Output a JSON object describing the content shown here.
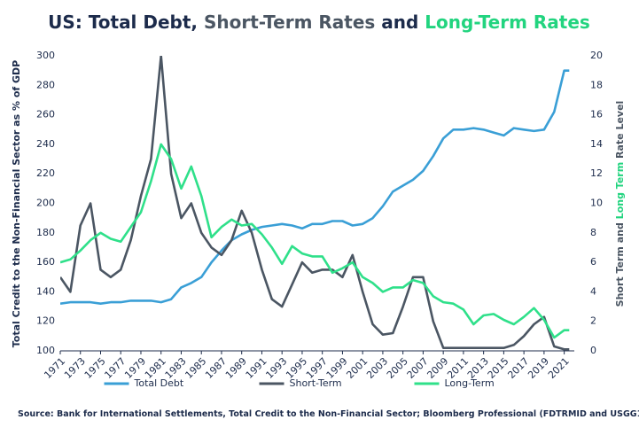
{
  "chart_data": {
    "type": "line",
    "title_parts": [
      {
        "text": "US: Total Debt",
        "color": "#1c2b4b"
      },
      {
        "text": ", ",
        "color": "#1c2b4b"
      },
      {
        "text": "Short-Term Rates",
        "color": "#4b5663"
      },
      {
        "text": " and ",
        "color": "#1c2b4b"
      },
      {
        "text": "Long-Term Rates",
        "color": "#22d47f"
      }
    ],
    "y_label": "Total Credit to the Non-Financial Sector as % of GDP",
    "y2_label_parts": [
      {
        "text": "Short Term",
        "color": "#4b5663"
      },
      {
        "text": " and ",
        "color": "#4b5663"
      },
      {
        "text": "Long Term",
        "color": "#22d47f"
      },
      {
        "text": " Rate Level",
        "color": "#4b5663"
      }
    ],
    "source": "Source: Bank for International Settlements, Total Credit to the Non-Financial Sector; Bloomberg Professional (FDTRMID and USGG10YR)",
    "x": [
      1971,
      1972,
      1973,
      1974,
      1975,
      1976,
      1977,
      1978,
      1979,
      1980,
      1981,
      1982,
      1983,
      1984,
      1985,
      1986,
      1987,
      1988,
      1989,
      1990,
      1991,
      1992,
      1993,
      1994,
      1995,
      1996,
      1997,
      1998,
      1999,
      2000,
      2001,
      2002,
      2003,
      2004,
      2005,
      2006,
      2007,
      2008,
      2009,
      2010,
      2011,
      2012,
      2013,
      2014,
      2015,
      2016,
      2017,
      2018,
      2019,
      2020,
      2021,
      2021.5
    ],
    "xlim": [
      1971,
      2022
    ],
    "xticks": [
      1971,
      1973,
      1975,
      1977,
      1979,
      1981,
      1983,
      1985,
      1987,
      1989,
      1991,
      1993,
      1995,
      1997,
      1999,
      2001,
      2003,
      2005,
      2007,
      2009,
      2011,
      2013,
      2015,
      2017,
      2019,
      2021
    ],
    "ylim": [
      100,
      300
    ],
    "yticks": [
      100,
      120,
      140,
      160,
      180,
      200,
      220,
      240,
      260,
      280,
      300
    ],
    "y2lim": [
      0,
      20
    ],
    "y2ticks": [
      0,
      2,
      4,
      6,
      8,
      10,
      12,
      14,
      16,
      18,
      20
    ],
    "legend": "bottom",
    "series": [
      {
        "name": "Total Debt",
        "color": "#3a9fd6",
        "values": [
          132,
          133,
          133,
          133,
          132,
          133,
          133,
          134,
          134,
          134,
          133,
          135,
          143,
          146,
          150,
          160,
          168,
          175,
          179,
          182,
          184,
          185,
          186,
          185,
          183,
          186,
          186,
          188,
          188,
          185,
          186,
          190,
          198,
          208,
          212,
          216,
          222,
          232,
          244,
          250,
          250,
          251,
          250,
          248,
          246,
          251,
          250,
          249,
          250,
          262,
          290,
          290
        ]
      },
      {
        "name": "Short-Term",
        "color": "#4b5663",
        "axis": "y2",
        "values": [
          5,
          4,
          8.5,
          10,
          5.5,
          5,
          5.5,
          7.5,
          10.5,
          13,
          20,
          12,
          9,
          10,
          8,
          7,
          6.5,
          7.5,
          9.5,
          8,
          5.5,
          3.5,
          3,
          4.5,
          6,
          5.3,
          5.5,
          5.5,
          5,
          6.5,
          4,
          1.8,
          1.1,
          1.2,
          3,
          5,
          5,
          2,
          0.2,
          0.2,
          0.2,
          0.2,
          0.2,
          0.2,
          0.2,
          0.4,
          1,
          1.8,
          2.3,
          0.3,
          0.1,
          0.1
        ]
      },
      {
        "name": "Long-Term",
        "color": "#2fe08a",
        "axis": "y2",
        "values": [
          6,
          6.2,
          6.8,
          7.5,
          8,
          7.6,
          7.4,
          8.4,
          9.4,
          11.5,
          14,
          13,
          11,
          12.5,
          10.5,
          7.7,
          8.4,
          8.9,
          8.5,
          8.6,
          7.9,
          7,
          5.9,
          7.1,
          6.6,
          6.4,
          6.4,
          5.3,
          5.6,
          6,
          5,
          4.6,
          4,
          4.3,
          4.3,
          4.8,
          4.6,
          3.7,
          3.3,
          3.2,
          2.8,
          1.8,
          2.4,
          2.5,
          2.1,
          1.8,
          2.3,
          2.9,
          2.1,
          0.9,
          1.4,
          1.4
        ]
      }
    ]
  }
}
